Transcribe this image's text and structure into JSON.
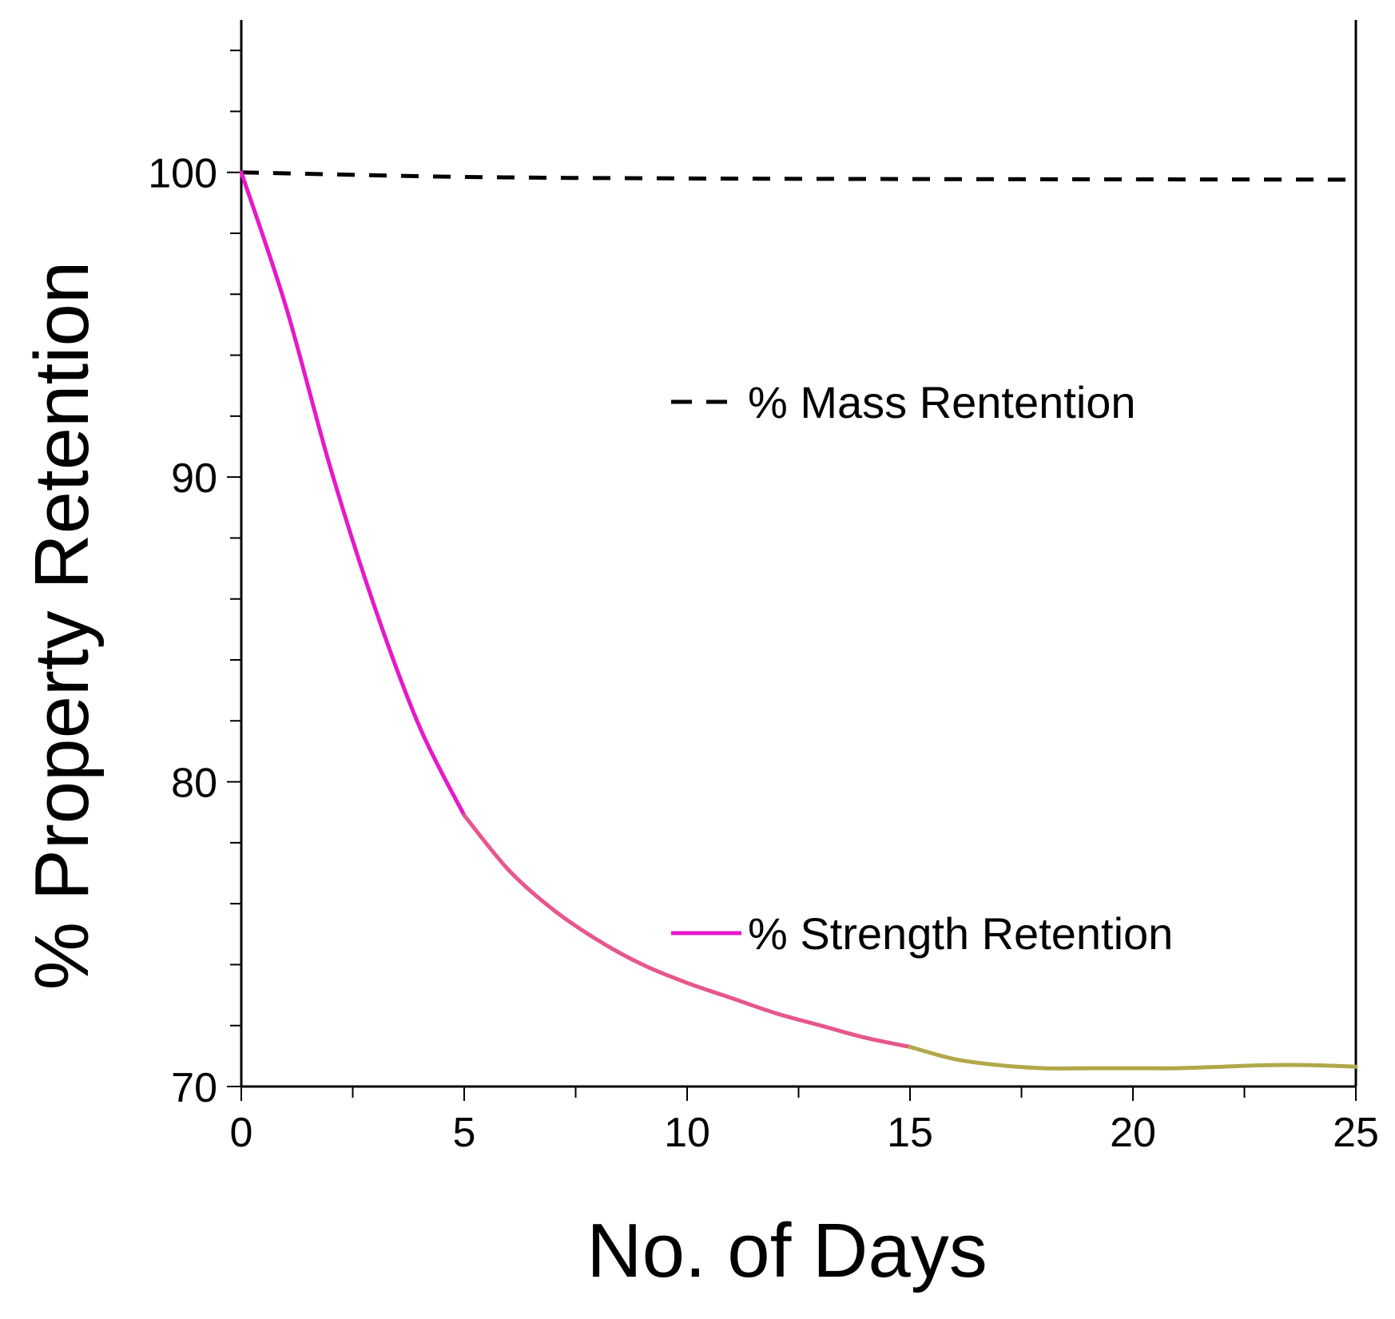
{
  "chart_data": {
    "type": "line",
    "title": "",
    "xlabel": "No. of Days",
    "ylabel": "% Property Retention",
    "xlim": [
      0,
      25
    ],
    "ylim": [
      70,
      105
    ],
    "x_ticks": [
      0,
      5,
      10,
      15,
      20,
      25
    ],
    "x_tick_labels": [
      "0",
      "5",
      "10",
      "15",
      "20",
      "25"
    ],
    "y_ticks": [
      70,
      80,
      90,
      100
    ],
    "y_tick_labels": [
      "70",
      "80",
      "90",
      "100"
    ],
    "x_minor_step": 2.5,
    "y_minor_step": 2,
    "grid": false,
    "legend_position": "inside-right",
    "series": [
      {
        "name": "% Mass Rentention",
        "style": "dashed",
        "color": "#000000",
        "x": [
          0,
          5,
          10,
          15,
          20,
          25
        ],
        "y": [
          100,
          99.85,
          99.8,
          99.78,
          99.77,
          99.76
        ]
      },
      {
        "name": "% Strength Retention",
        "style": "solid",
        "color": "#e619c8",
        "segment_colors": [
          {
            "from": 0,
            "to": 5,
            "color": "#e619c8"
          },
          {
            "from": 5,
            "to": 15,
            "color": "#e6578c"
          },
          {
            "from": 15,
            "to": 25,
            "color": "#b0a84a"
          }
        ],
        "x": [
          0,
          1,
          2,
          3,
          4,
          5,
          6,
          7,
          8,
          9,
          10,
          11,
          12,
          13,
          14,
          15,
          16,
          17,
          18,
          19,
          20,
          21,
          22,
          23,
          24,
          25
        ],
        "y": [
          100,
          95.6,
          90.3,
          85.7,
          81.8,
          78.9,
          77.1,
          75.8,
          74.8,
          74.0,
          73.4,
          72.9,
          72.4,
          72.0,
          71.6,
          71.3,
          70.9,
          70.7,
          70.6,
          70.6,
          70.6,
          70.6,
          70.65,
          70.7,
          70.7,
          70.65
        ]
      }
    ]
  }
}
